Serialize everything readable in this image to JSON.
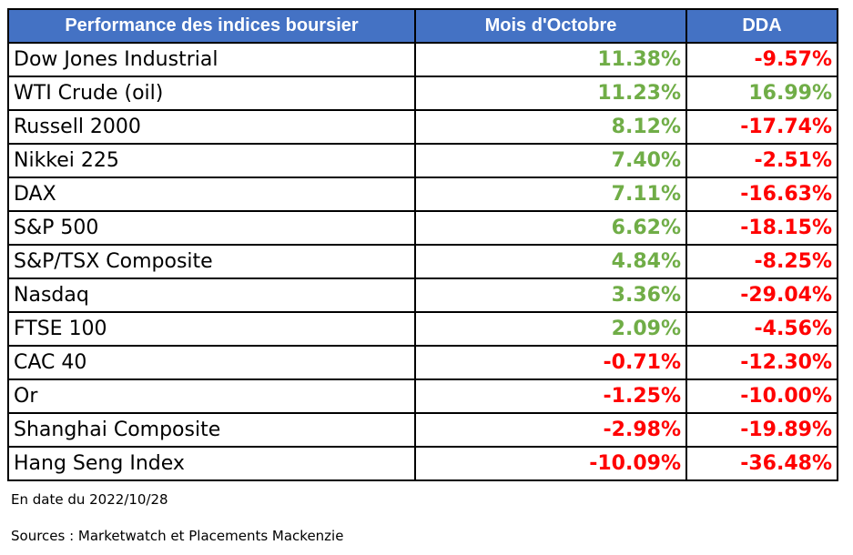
{
  "chart_data": {
    "type": "table",
    "columns": [
      "Performance des indices boursier",
      "Mois d'Octobre",
      "DDA"
    ],
    "rows": [
      {
        "name": "Dow Jones Industrial",
        "month": "11.38%",
        "ytd": "-9.57%"
      },
      {
        "name": "WTI Crude (oil)",
        "month": "11.23%",
        "ytd": "16.99%"
      },
      {
        "name": "Russell 2000",
        "month": "8.12%",
        "ytd": "-17.74%"
      },
      {
        "name": "Nikkei 225",
        "month": "7.40%",
        "ytd": "-2.51%"
      },
      {
        "name": "DAX",
        "month": "7.11%",
        "ytd": "-16.63%"
      },
      {
        "name": "S&P 500",
        "month": "6.62%",
        "ytd": "-18.15%"
      },
      {
        "name": "S&P/TSX Composite",
        "month": "4.84%",
        "ytd": "-8.25%"
      },
      {
        "name": "Nasdaq",
        "month": "3.36%",
        "ytd": "-29.04%"
      },
      {
        "name": "FTSE 100",
        "month": "2.09%",
        "ytd": "-4.56%"
      },
      {
        "name": "CAC 40",
        "month": "-0.71%",
        "ytd": "-12.30%"
      },
      {
        "name": "Or",
        "month": "-1.25%",
        "ytd": "-10.00%"
      },
      {
        "name": "Shanghai Composite",
        "month": "-2.98%",
        "ytd": "-19.89%"
      },
      {
        "name": "Hang Seng Index",
        "month": "-10.09%",
        "ytd": "-36.48%"
      }
    ]
  },
  "notes": {
    "date": "En date du 2022/10/28",
    "sources": "Sources : Marketwatch et Placements Mackenzie"
  },
  "colors": {
    "header_bg": "#4472C4",
    "positive": "#70AD47",
    "negative": "#FF0000"
  }
}
